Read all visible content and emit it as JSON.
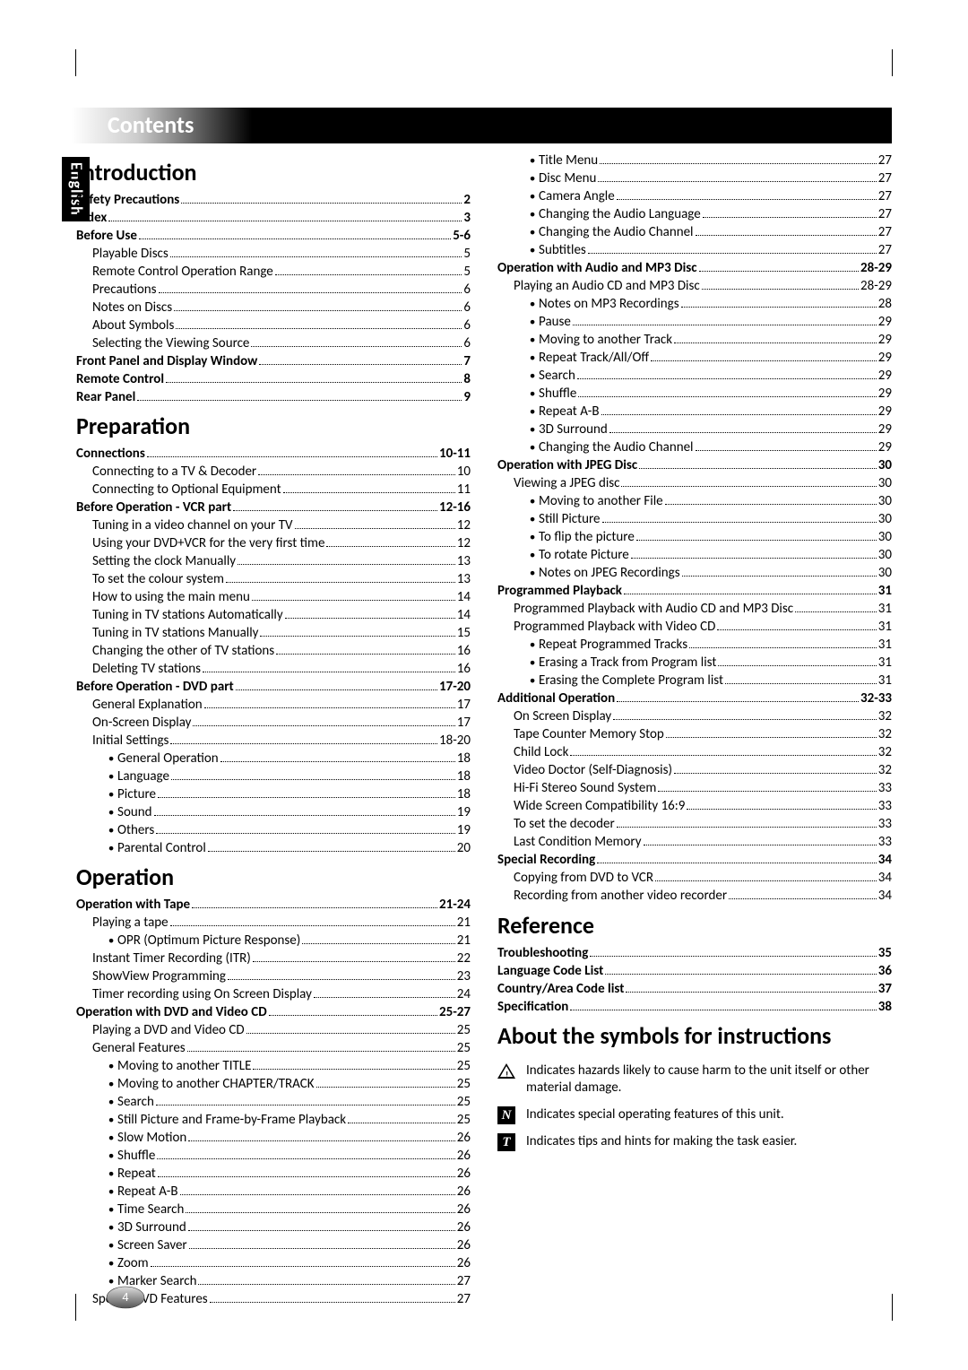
{
  "language_tab": "English",
  "title": "Contents",
  "page_number": "4",
  "sections_left": [
    {
      "heading": "Introduction"
    },
    {
      "l": 0,
      "t": "Safety Precautions",
      "p": "2"
    },
    {
      "l": 0,
      "t": "Index",
      "p": "3"
    },
    {
      "l": 0,
      "t": "Before Use",
      "p": "5-6"
    },
    {
      "l": 1,
      "t": "Playable Discs",
      "p": "5"
    },
    {
      "l": 1,
      "t": "Remote Control Operation Range",
      "p": "5"
    },
    {
      "l": 1,
      "t": "Precautions",
      "p": "6"
    },
    {
      "l": 1,
      "t": "Notes on Discs",
      "p": "6"
    },
    {
      "l": 1,
      "t": "About Symbols",
      "p": "6"
    },
    {
      "l": 1,
      "t": "Selecting the Viewing Source",
      "p": "6"
    },
    {
      "l": 0,
      "t": "Front Panel and Display Window",
      "p": "7"
    },
    {
      "l": 0,
      "t": "Remote Control",
      "p": "8"
    },
    {
      "l": 0,
      "t": "Rear Panel",
      "p": "9"
    },
    {
      "heading": "Preparation"
    },
    {
      "l": 0,
      "t": "Connections",
      "p": "10-11"
    },
    {
      "l": 1,
      "t": "Connecting to a TV & Decoder",
      "p": "10"
    },
    {
      "l": 1,
      "t": "Connecting to Optional Equipment",
      "p": "11"
    },
    {
      "l": 0,
      "t": "Before Operation - VCR part",
      "p": "12-16"
    },
    {
      "l": 1,
      "t": "Tuning in a video channel on your TV",
      "p": "12"
    },
    {
      "l": 1,
      "t": "Using your DVD+VCR for the very first time",
      "p": "12"
    },
    {
      "l": 1,
      "t": "Setting the clock Manually",
      "p": "13"
    },
    {
      "l": 1,
      "t": "To set the colour system",
      "p": "13"
    },
    {
      "l": 1,
      "t": "How to using the main menu",
      "p": "14"
    },
    {
      "l": 1,
      "t": "Tuning in TV stations Automatically",
      "p": "14"
    },
    {
      "l": 1,
      "t": "Tuning in TV stations Manually",
      "p": "15"
    },
    {
      "l": 1,
      "t": "Changing the other of TV stations",
      "p": "16"
    },
    {
      "l": 1,
      "t": "Deleting TV stations",
      "p": "16"
    },
    {
      "l": 0,
      "t": "Before Operation - DVD part",
      "p": "17-20"
    },
    {
      "l": 1,
      "t": "General Explanation",
      "p": "17"
    },
    {
      "l": 1,
      "t": "On-Screen Display",
      "p": "17"
    },
    {
      "l": 1,
      "t": "Initial Settings",
      "p": "18-20"
    },
    {
      "l": 2,
      "b": true,
      "t": "General Operation",
      "p": "18"
    },
    {
      "l": 2,
      "b": true,
      "t": "Language",
      "p": "18"
    },
    {
      "l": 2,
      "b": true,
      "t": "Picture",
      "p": "18"
    },
    {
      "l": 2,
      "b": true,
      "t": "Sound",
      "p": "19"
    },
    {
      "l": 2,
      "b": true,
      "t": "Others",
      "p": "19"
    },
    {
      "l": 2,
      "b": true,
      "t": "Parental Control",
      "p": "20"
    },
    {
      "heading": "Operation"
    },
    {
      "l": 0,
      "t": "Operation with Tape",
      "p": "21-24"
    },
    {
      "l": 1,
      "t": "Playing a tape",
      "p": "21"
    },
    {
      "l": 2,
      "b": true,
      "t": "OPR (Optimum Picture Response)",
      "p": "21"
    },
    {
      "l": 1,
      "t": "Instant Timer Recording (ITR)",
      "p": "22"
    },
    {
      "l": 1,
      "t": "ShowView Programming",
      "p": "23"
    },
    {
      "l": 1,
      "t": "Timer recording using On Screen Display",
      "p": "24"
    },
    {
      "l": 0,
      "t": "Operation with DVD and Video CD",
      "p": "25-27"
    },
    {
      "l": 1,
      "t": "Playing a DVD and Video CD",
      "p": "25"
    },
    {
      "l": 1,
      "t": "General Features",
      "p": "25"
    },
    {
      "l": 2,
      "b": true,
      "t": "Moving to another TITLE",
      "p": "25"
    },
    {
      "l": 2,
      "b": true,
      "t": "Moving to another CHAPTER/TRACK",
      "p": "25"
    },
    {
      "l": 2,
      "b": true,
      "t": "Search",
      "p": "25"
    },
    {
      "l": 2,
      "b": true,
      "t": "Still Picture and Frame-by-Frame Playback",
      "p": "25"
    },
    {
      "l": 2,
      "b": true,
      "t": "Slow Motion",
      "p": "26"
    },
    {
      "l": 2,
      "b": true,
      "t": "Shuffle",
      "p": "26"
    },
    {
      "l": 2,
      "b": true,
      "t": "Repeat",
      "p": "26"
    },
    {
      "l": 2,
      "b": true,
      "t": "Repeat A-B",
      "p": "26"
    },
    {
      "l": 2,
      "b": true,
      "t": "Time Search",
      "p": "26"
    },
    {
      "l": 2,
      "b": true,
      "t": "3D Surround",
      "p": "26"
    },
    {
      "l": 2,
      "b": true,
      "t": "Screen Saver",
      "p": "26"
    },
    {
      "l": 2,
      "b": true,
      "t": "Zoom",
      "p": "26"
    },
    {
      "l": 2,
      "b": true,
      "t": "Marker Search",
      "p": "27"
    },
    {
      "l": 1,
      "t": "Special DVD Features",
      "p": "27"
    }
  ],
  "sections_right": [
    {
      "l": 2,
      "b": true,
      "t": "Title Menu",
      "p": "27"
    },
    {
      "l": 2,
      "b": true,
      "t": "Disc Menu",
      "p": "27"
    },
    {
      "l": 2,
      "b": true,
      "t": "Camera Angle",
      "p": "27"
    },
    {
      "l": 2,
      "b": true,
      "t": "Changing the Audio Language",
      "p": "27"
    },
    {
      "l": 2,
      "b": true,
      "t": "Changing the Audio Channel",
      "p": "27"
    },
    {
      "l": 2,
      "b": true,
      "t": "Subtitles",
      "p": "27"
    },
    {
      "l": 0,
      "t": "Operation with Audio and MP3 Disc",
      "p": "28-29"
    },
    {
      "l": 1,
      "t": "Playing an Audio CD and MP3 Disc",
      "p": "28-29"
    },
    {
      "l": 2,
      "b": true,
      "t": "Notes on MP3 Recordings",
      "p": "28"
    },
    {
      "l": 2,
      "b": true,
      "t": "Pause",
      "p": "29"
    },
    {
      "l": 2,
      "b": true,
      "t": "Moving to another Track",
      "p": "29"
    },
    {
      "l": 2,
      "b": true,
      "t": "Repeat Track/All/Off",
      "p": "29"
    },
    {
      "l": 2,
      "b": true,
      "t": "Search",
      "p": "29"
    },
    {
      "l": 2,
      "b": true,
      "t": "Shuffle",
      "p": "29"
    },
    {
      "l": 2,
      "b": true,
      "t": "Repeat A-B",
      "p": "29"
    },
    {
      "l": 2,
      "b": true,
      "t": "3D Surround",
      "p": "29"
    },
    {
      "l": 2,
      "b": true,
      "t": "Changing the Audio Channel",
      "p": "29"
    },
    {
      "l": 0,
      "t": "Operation with JPEG Disc",
      "p": "30"
    },
    {
      "l": 1,
      "t": "Viewing a JPEG disc",
      "p": "30"
    },
    {
      "l": 2,
      "b": true,
      "t": "Moving to another File",
      "p": "30"
    },
    {
      "l": 2,
      "b": true,
      "t": "Still Picture",
      "p": "30"
    },
    {
      "l": 2,
      "b": true,
      "t": "To flip the picture",
      "p": "30"
    },
    {
      "l": 2,
      "b": true,
      "t": "To rotate Picture",
      "p": "30"
    },
    {
      "l": 2,
      "b": true,
      "t": "Notes on JPEG Recordings",
      "p": "30"
    },
    {
      "l": 0,
      "t": "Programmed Playback",
      "p": "31"
    },
    {
      "l": 1,
      "t": "Programmed Playback with Audio CD and MP3 Disc",
      "p": "31"
    },
    {
      "l": 1,
      "t": "Programmed Playback with Video CD",
      "p": "31"
    },
    {
      "l": 2,
      "b": true,
      "t": "Repeat Programmed Tracks",
      "p": "31"
    },
    {
      "l": 2,
      "b": true,
      "t": "Erasing a Track from Program list",
      "p": "31"
    },
    {
      "l": 2,
      "b": true,
      "t": "Erasing the Complete Program list",
      "p": "31"
    },
    {
      "l": 0,
      "t": "Additional Operation",
      "p": "32-33"
    },
    {
      "l": 1,
      "t": "On Screen Display",
      "p": "32"
    },
    {
      "l": 1,
      "t": "Tape Counter Memory Stop",
      "p": "32"
    },
    {
      "l": 1,
      "t": "Child Lock",
      "p": "32"
    },
    {
      "l": 1,
      "t": "Video Doctor (Self-Diagnosis)",
      "p": "32"
    },
    {
      "l": 1,
      "t": "Hi-Fi Stereo Sound System",
      "p": "33"
    },
    {
      "l": 1,
      "t": "Wide Screen Compatibility 16:9",
      "p": "33"
    },
    {
      "l": 1,
      "t": "To set the decoder",
      "p": "33"
    },
    {
      "l": 1,
      "t": "Last Condition Memory",
      "p": "33"
    },
    {
      "l": 0,
      "t": "Special Recording",
      "p": "34"
    },
    {
      "l": 1,
      "t": "Copying from DVD to VCR",
      "p": "34"
    },
    {
      "l": 1,
      "t": "Recording from another video recorder",
      "p": "34"
    },
    {
      "heading": "Reference"
    },
    {
      "l": 0,
      "t": "Troubleshooting",
      "p": "35"
    },
    {
      "l": 0,
      "t": "Language Code List",
      "p": "36"
    },
    {
      "l": 0,
      "t": "Country/Area Code list",
      "p": "37"
    },
    {
      "l": 0,
      "t": "Specification",
      "p": "38"
    },
    {
      "heading": "About the symbols for instructions"
    }
  ],
  "symbols": [
    {
      "icon": "warning",
      "text": "Indicates hazards likely to cause harm to the unit itself or other material damage."
    },
    {
      "icon": "N",
      "text": "Indicates special operating features of this unit."
    },
    {
      "icon": "T",
      "text": "Indicates tips and hints for making the task easier."
    }
  ]
}
